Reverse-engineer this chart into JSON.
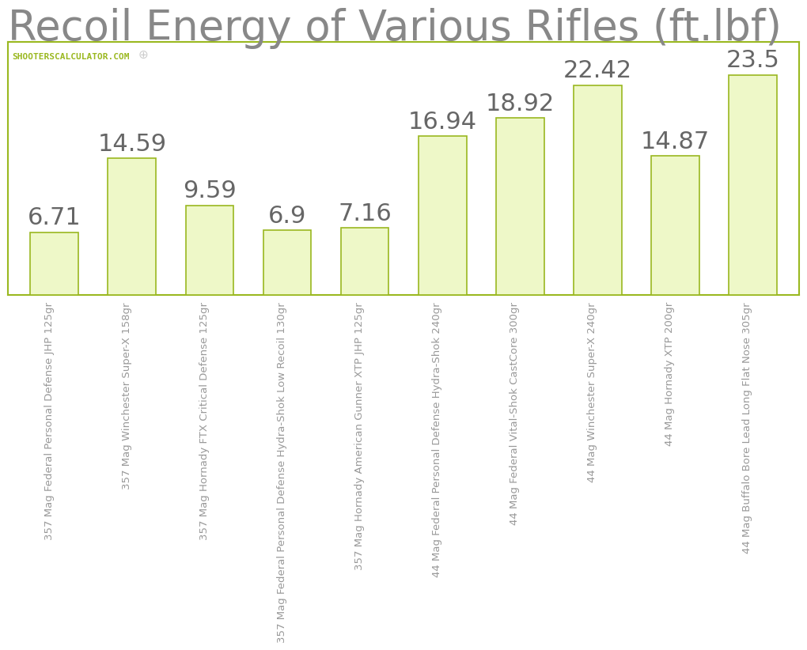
{
  "title": "Recoil Energy of Various Rifles (ft.lbf)",
  "title_fontsize": 38,
  "title_color": "#888888",
  "categories": [
    "357 Mag Federal Personal Defense JHP 125gr",
    "357 Mag Winchester Super-X 158gr",
    "357 Mag Hornady FTX Critical Defense 125gr",
    "357 Mag Federal Personal Defense Hydra-Shok Low Recoil 130gr",
    "357 Mag Hornady American Gunner XTP JHP 125gr",
    "44 Mag Federal Personal Defense Hydra-Shok 240gr",
    "44 Mag Federal Vital-Shok CastCore 300gr",
    "44 Mag Winchester Super-X 240gr",
    "44 Mag Hornady XTP 200gr",
    "44 Mag Buffalo Bore Lead Long Flat Nose 305gr"
  ],
  "values": [
    6.71,
    14.59,
    9.59,
    6.9,
    7.16,
    16.94,
    18.92,
    22.42,
    14.87,
    23.5
  ],
  "bar_color": "#eef8c8",
  "bar_edge_color": "#9ab820",
  "bar_edge_width": 1.2,
  "value_color": "#666666",
  "value_fontsize": 22,
  "xlabel_fontsize": 9.5,
  "xlabel_color": "#999999",
  "grid_color": "#e0e0e0",
  "background_color": "#ffffff",
  "plot_bg_color": "#ffffff",
  "border_color": "#9ab820",
  "watermark_text": "SHOOTERSCALCULATOR.COM",
  "watermark_color": "#9ab820",
  "watermark_fontsize": 8,
  "crosshair_color": "#cccccc",
  "ylim": [
    0,
    27
  ],
  "title_family": "sans-serif"
}
